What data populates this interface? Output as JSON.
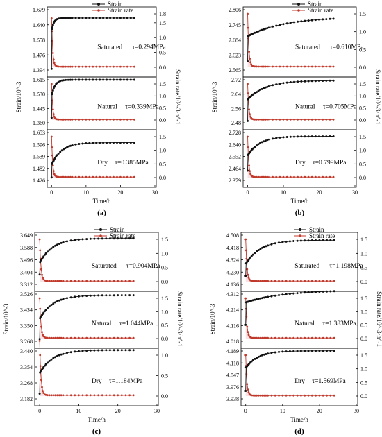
{
  "legend": {
    "strain_label": "Strain",
    "rate_label": "Strain rate"
  },
  "colors": {
    "strain": "#111111",
    "rate": "#c0392b",
    "rate_fill": "#f2c6cd",
    "axis": "#000000"
  },
  "chart_data": {
    "type": "line",
    "common": {
      "xlabel": "Time/h",
      "ylabel_left": "Strain/10^-3",
      "ylabel_right": "Strain rate/10^-3·h^-1",
      "xlim": [
        0,
        30
      ],
      "xticks": [
        "0",
        "10",
        "20",
        "30"
      ],
      "time_h": [
        0,
        0.1,
        0.2,
        0.4,
        0.6,
        0.8,
        1.0,
        1.3,
        1.6,
        2.0,
        2.5,
        3.0,
        3.5,
        4.0,
        4.5,
        5.0,
        5.5,
        6.0,
        7.0,
        8.0,
        9.0,
        10.0,
        11.0,
        12.0,
        13.0,
        14.0,
        15.0,
        16.0,
        17.0,
        18.0,
        19.0,
        20.0,
        21.0,
        22.0,
        23.0,
        24.0
      ]
    },
    "panels": [
      {
        "label": "(a)",
        "subplots": [
          {
            "condition": "Saturated",
            "tau_label": "τ=0.294MPa",
            "strain_ticks": [
              "1.679",
              "1.640",
              "1.558",
              "1.476",
              "1.394"
            ],
            "rate_ticks": [
              "1.8",
              "1.5",
              "1.0",
              "0.5",
              "0.0"
            ],
            "strain_start": 1.4,
            "strain_end": 1.64,
            "strain_k": 1.5,
            "strain_jump": 1.58,
            "rate_peak": 1.65
          },
          {
            "condition": "Natural",
            "tau_label": "τ=0.339MPa",
            "strain_ticks": [
              "1.615",
              "1.530",
              "1.445",
              "1.360"
            ],
            "rate_ticks": [
              "1.5",
              "1.0",
              "0.5",
              "0.0"
            ],
            "strain_start": 1.39,
            "strain_end": 1.615,
            "strain_k": 1.0,
            "strain_jump": 1.52,
            "rate_peak": 1.5
          },
          {
            "condition": "Dry",
            "tau_label": "τ=0.385MPa",
            "strain_ticks": [
              "1.653",
              "1.596",
              "1.539",
              "1.482",
              "1.426"
            ],
            "rate_ticks": [
              "1.5",
              "1.0",
              "0.5",
              "0.0"
            ],
            "strain_start": 1.44,
            "strain_end": 1.605,
            "strain_k": 0.35,
            "strain_jump": 1.5,
            "rate_peak": 1.5
          }
        ]
      },
      {
        "label": "(b)",
        "subplots": [
          {
            "condition": "Saturated",
            "tau_label": "τ=0.610MPa",
            "strain_ticks": [
              "2.806",
              "2.745",
              "2.684",
              "2.623",
              "2.565"
            ],
            "rate_ticks": [
              "1.5",
              "1.0",
              "0.5",
              "0.0"
            ],
            "strain_start": 2.6,
            "strain_end": 2.77,
            "strain_k": 0.1,
            "strain_jump": 2.7,
            "rate_peak": 1.5
          },
          {
            "condition": "Natural",
            "tau_label": "τ=0.705MPa",
            "strain_ticks": [
              "2.72",
              "2.64",
              "2.56",
              "2.48"
            ],
            "rate_ticks": [
              "1.5",
              "1.0",
              "0.5",
              "0.0"
            ],
            "strain_start": 2.49,
            "strain_end": 2.715,
            "strain_k": 0.2,
            "strain_jump": 2.61,
            "rate_peak": 1.5
          },
          {
            "condition": "Dry",
            "tau_label": "τ=0.799MPa",
            "strain_ticks": [
              "2.728",
              "2.640",
              "2.552",
              "2.464",
              "2.379"
            ],
            "rate_ticks": [
              "1.5",
              "1.0",
              "0.5",
              "0.0"
            ],
            "strain_start": 2.45,
            "strain_end": 2.7,
            "strain_k": 0.3,
            "strain_jump": 2.56,
            "rate_peak": 1.5
          }
        ]
      },
      {
        "label": "(c)",
        "subplots": [
          {
            "condition": "Saturated",
            "tau_label": "τ=0.904MPa",
            "strain_ticks": [
              "3.649",
              "3.588",
              "3.496",
              "3.404",
              "3.312"
            ],
            "rate_ticks": [
              "1.5",
              "1.0",
              "0.5",
              "0.0"
            ],
            "strain_start": 3.38,
            "strain_end": 3.627,
            "strain_k": 0.3,
            "strain_jump": 3.46,
            "rate_peak": 1.5
          },
          {
            "condition": "Natural",
            "tau_label": "τ=1.044MPa",
            "strain_ticks": [
              "3.526",
              "3.434",
              "3.350",
              "3.268"
            ],
            "rate_ticks": [
              "1.5",
              "1.0",
              "0.5",
              "0.0"
            ],
            "strain_start": 3.28,
            "strain_end": 3.52,
            "strain_k": 0.3,
            "strain_jump": 3.39,
            "rate_peak": 1.5
          },
          {
            "condition": "Dry",
            "tau_label": "τ=1.184MPa",
            "strain_ticks": [
              "3.440",
              "3.354",
              "3.268",
              "3.182"
            ],
            "rate_ticks": [
              "1.0",
              "0.5",
              "0.0"
            ],
            "strain_start": 3.21,
            "strain_end": 3.445,
            "strain_k": 0.3,
            "strain_jump": 3.32,
            "rate_peak": 1.35
          }
        ]
      },
      {
        "label": "(d)",
        "subplots": [
          {
            "condition": "Saturated",
            "tau_label": "τ=1.198MPa",
            "strain_ticks": [
              "4.508",
              "4.418",
              "4.324",
              "4.230",
              "4.136"
            ],
            "rate_ticks": [
              "1.5",
              "1.0",
              "0.5",
              "0.0"
            ],
            "strain_start": 4.2,
            "strain_end": 4.47,
            "strain_k": 0.25,
            "strain_jump": 4.29,
            "rate_peak": 1.5
          },
          {
            "condition": "Natural",
            "tau_label": "τ=1.383MPa",
            "strain_ticks": [
              "4.312",
              "4.214",
              "4.116",
              "4.018"
            ],
            "rate_ticks": [
              "1.5",
              "1.0",
              "0.5",
              "0.0"
            ],
            "strain_start": 4.12,
            "strain_end": 4.33,
            "strain_k": 0.1,
            "strain_jump": 4.26,
            "rate_peak": 1.5
          },
          {
            "condition": "Dry",
            "tau_label": "τ=1.569MPa",
            "strain_ticks": [
              "4.189",
              "4.118",
              "4.047",
              "3.976",
              "3.938"
            ],
            "rate_ticks": [
              "1.5",
              "1.0",
              "0.5",
              "0.0"
            ],
            "strain_start": 3.98,
            "strain_end": 4.19,
            "strain_k": 0.3,
            "strain_jump": 4.1,
            "rate_peak": 1.5
          }
        ]
      }
    ]
  }
}
